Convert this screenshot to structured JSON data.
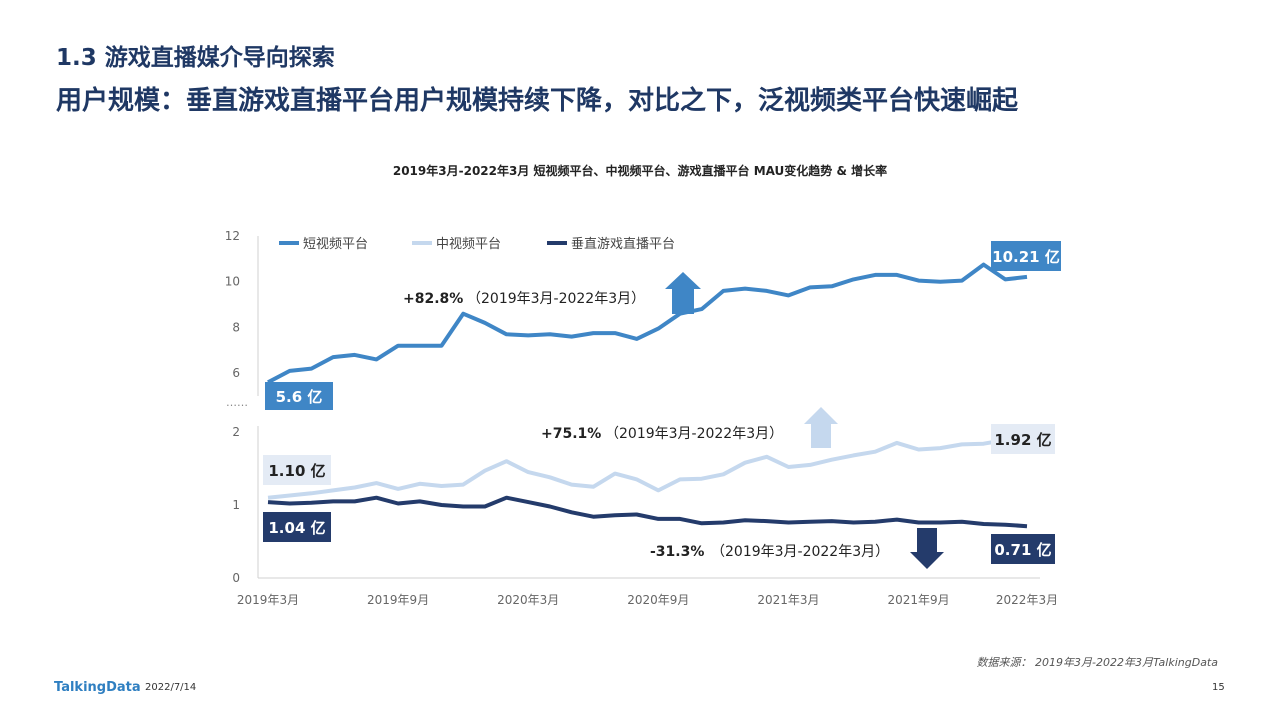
{
  "header": {
    "section": "1.3 游戏直播媒介导向探索",
    "headline": "用户规模：垂直游戏直播平台用户规模持续下降，对比之下，泛视频类平台快速崛起"
  },
  "footer": {
    "source": "数据来源： 2019年3月-2022年3月TalkingData",
    "logo": "TalkingData",
    "date": "2022/7/14",
    "page": "15"
  },
  "colors": {
    "short": "#3f86c6",
    "mid": "#c5d8ee",
    "game": "#243b6b"
  },
  "chart_data": {
    "type": "line",
    "title": "2019年3月-2022年3月 短视频平台、中视频平台、游戏直播平台 MAU变化趋势 & 增长率",
    "x_tick_labels": [
      "2019年3月",
      "2019年9月",
      "2020年3月",
      "2020年9月",
      "2021年3月",
      "2021年9月",
      "2022年3月"
    ],
    "axis_break": "……",
    "upper_axis": {
      "ylim": [
        5,
        12
      ],
      "ticks": [
        "6",
        "8",
        "10",
        "12"
      ]
    },
    "lower_axis": {
      "ylim": [
        0,
        2
      ],
      "ticks": [
        "0",
        "1",
        "2"
      ]
    },
    "series": [
      {
        "name": "短视频平台",
        "axis": "upper",
        "unit": "亿",
        "values": [
          5.6,
          6.1,
          6.2,
          6.7,
          6.8,
          6.6,
          7.2,
          7.2,
          7.2,
          8.6,
          8.2,
          7.7,
          7.65,
          7.7,
          7.6,
          7.75,
          7.75,
          7.5,
          7.95,
          8.6,
          8.8,
          9.6,
          9.7,
          9.6,
          9.4,
          9.75,
          9.8,
          10.1,
          10.3,
          10.3,
          10.05,
          10.0,
          10.05,
          10.75,
          10.1,
          10.21
        ]
      },
      {
        "name": "中视频平台",
        "axis": "lower",
        "unit": "亿",
        "values": [
          1.1,
          1.13,
          1.16,
          1.2,
          1.24,
          1.3,
          1.22,
          1.29,
          1.26,
          1.28,
          1.47,
          1.6,
          1.45,
          1.38,
          1.28,
          1.25,
          1.43,
          1.35,
          1.2,
          1.35,
          1.36,
          1.42,
          1.58,
          1.66,
          1.52,
          1.55,
          1.62,
          1.68,
          1.73,
          1.85,
          1.76,
          1.78,
          1.83,
          1.84,
          1.89,
          1.92
        ]
      },
      {
        "name": "垂直游戏直播平台",
        "axis": "lower",
        "unit": "亿",
        "values": [
          1.04,
          1.02,
          1.03,
          1.05,
          1.05,
          1.1,
          1.02,
          1.05,
          1.0,
          0.98,
          0.98,
          1.1,
          1.04,
          0.98,
          0.9,
          0.84,
          0.86,
          0.87,
          0.81,
          0.81,
          0.75,
          0.76,
          0.79,
          0.78,
          0.76,
          0.77,
          0.78,
          0.76,
          0.77,
          0.8,
          0.76,
          0.76,
          0.77,
          0.74,
          0.73,
          0.71
        ]
      }
    ],
    "annotations": {
      "short_start": "5.6 亿",
      "short_end": "10.21 亿",
      "mid_start": "1.10 亿",
      "mid_end": "1.92 亿",
      "game_start": "1.04 亿",
      "game_end": "0.71 亿",
      "short_growth": "+82.8%",
      "mid_growth": "+75.1%",
      "game_growth": "-31.3%",
      "period": "（2019年3月-2022年3月）"
    }
  }
}
